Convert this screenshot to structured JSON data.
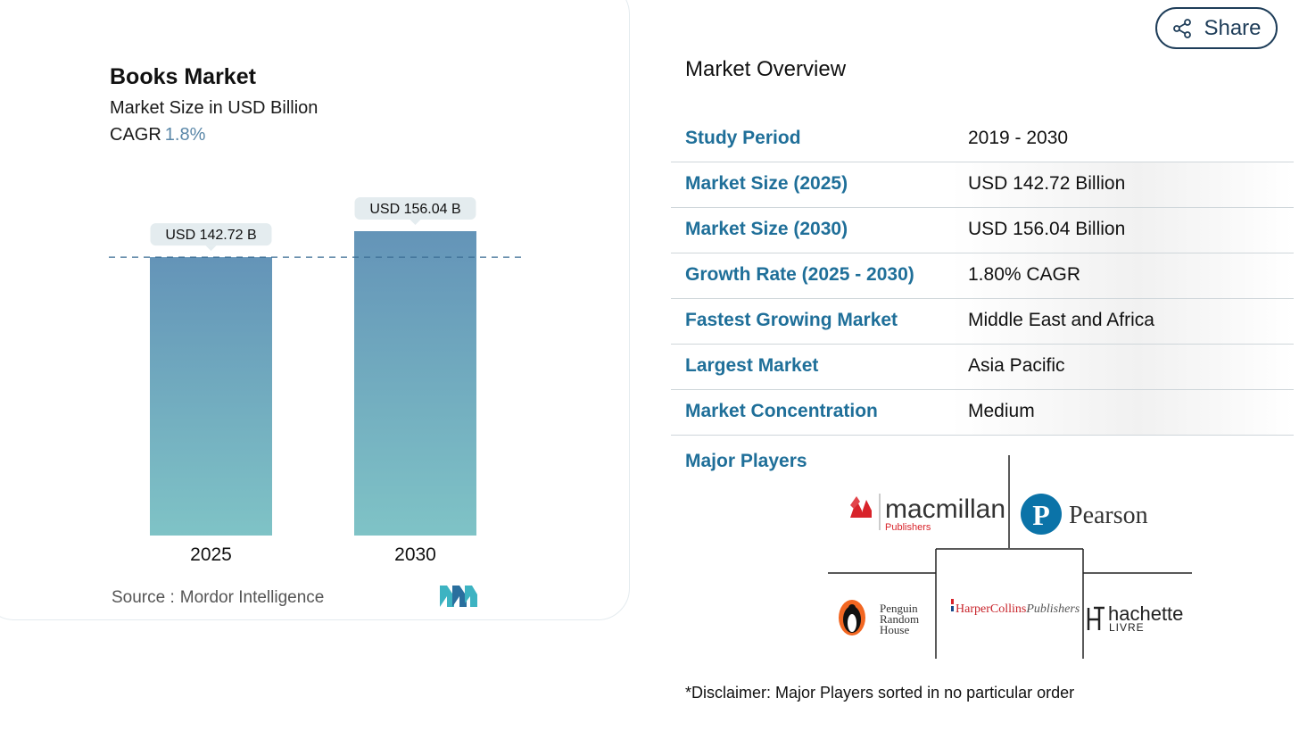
{
  "chart_title": "Books Market",
  "chart_subtitle": "Market Size in USD Billion",
  "cagr_label": "CAGR",
  "cagr_value": "1.8%",
  "source_label": "Source :",
  "source_value": "Mordor Intelligence",
  "share_label": "Share",
  "colors": {
    "bar_top": "#6494b8",
    "bar_bottom": "#7fc3c6",
    "accent": "#1f6f99",
    "dark": "#1e3d59"
  },
  "chart_data": {
    "type": "bar",
    "categories": [
      "2025",
      "2030"
    ],
    "values": [
      142.72,
      156.04
    ],
    "data_labels": [
      "USD 142.72 B",
      "USD 156.04 B"
    ],
    "reference_line": 142.72,
    "title": "Books Market",
    "ylabel": "Market Size in USD Billion",
    "ylim": [
      0,
      156.04
    ]
  },
  "overview": {
    "title": "Market Overview",
    "rows": [
      {
        "label": "Study Period",
        "value": "2019 - 2030"
      },
      {
        "label": "Market Size (2025)",
        "value": "USD 142.72 Billion"
      },
      {
        "label": "Market Size (2030)",
        "value": "USD 156.04 Billion"
      },
      {
        "label": "Growth Rate (2025 - 2030)",
        "value": "1.80% CAGR"
      },
      {
        "label": "Fastest Growing Market",
        "value": "Middle East and Africa"
      },
      {
        "label": "Largest Market",
        "value": "Asia Pacific"
      },
      {
        "label": "Market Concentration",
        "value": "Medium"
      }
    ]
  },
  "major_players": {
    "label": "Major Players",
    "logos": {
      "macmillan": {
        "name": "macmillan",
        "sub": "Publishers"
      },
      "pearson": {
        "name": "Pearson"
      },
      "penguin": {
        "lines": [
          "Penguin",
          "Random",
          "House"
        ]
      },
      "harpercollins": {
        "name": "HarperCollins",
        "suffix": "Publishers"
      },
      "hachette": {
        "name": "hachette",
        "sub": "LIVRE"
      }
    }
  },
  "disclaimer": "*Disclaimer: Major Players sorted in no particular order"
}
